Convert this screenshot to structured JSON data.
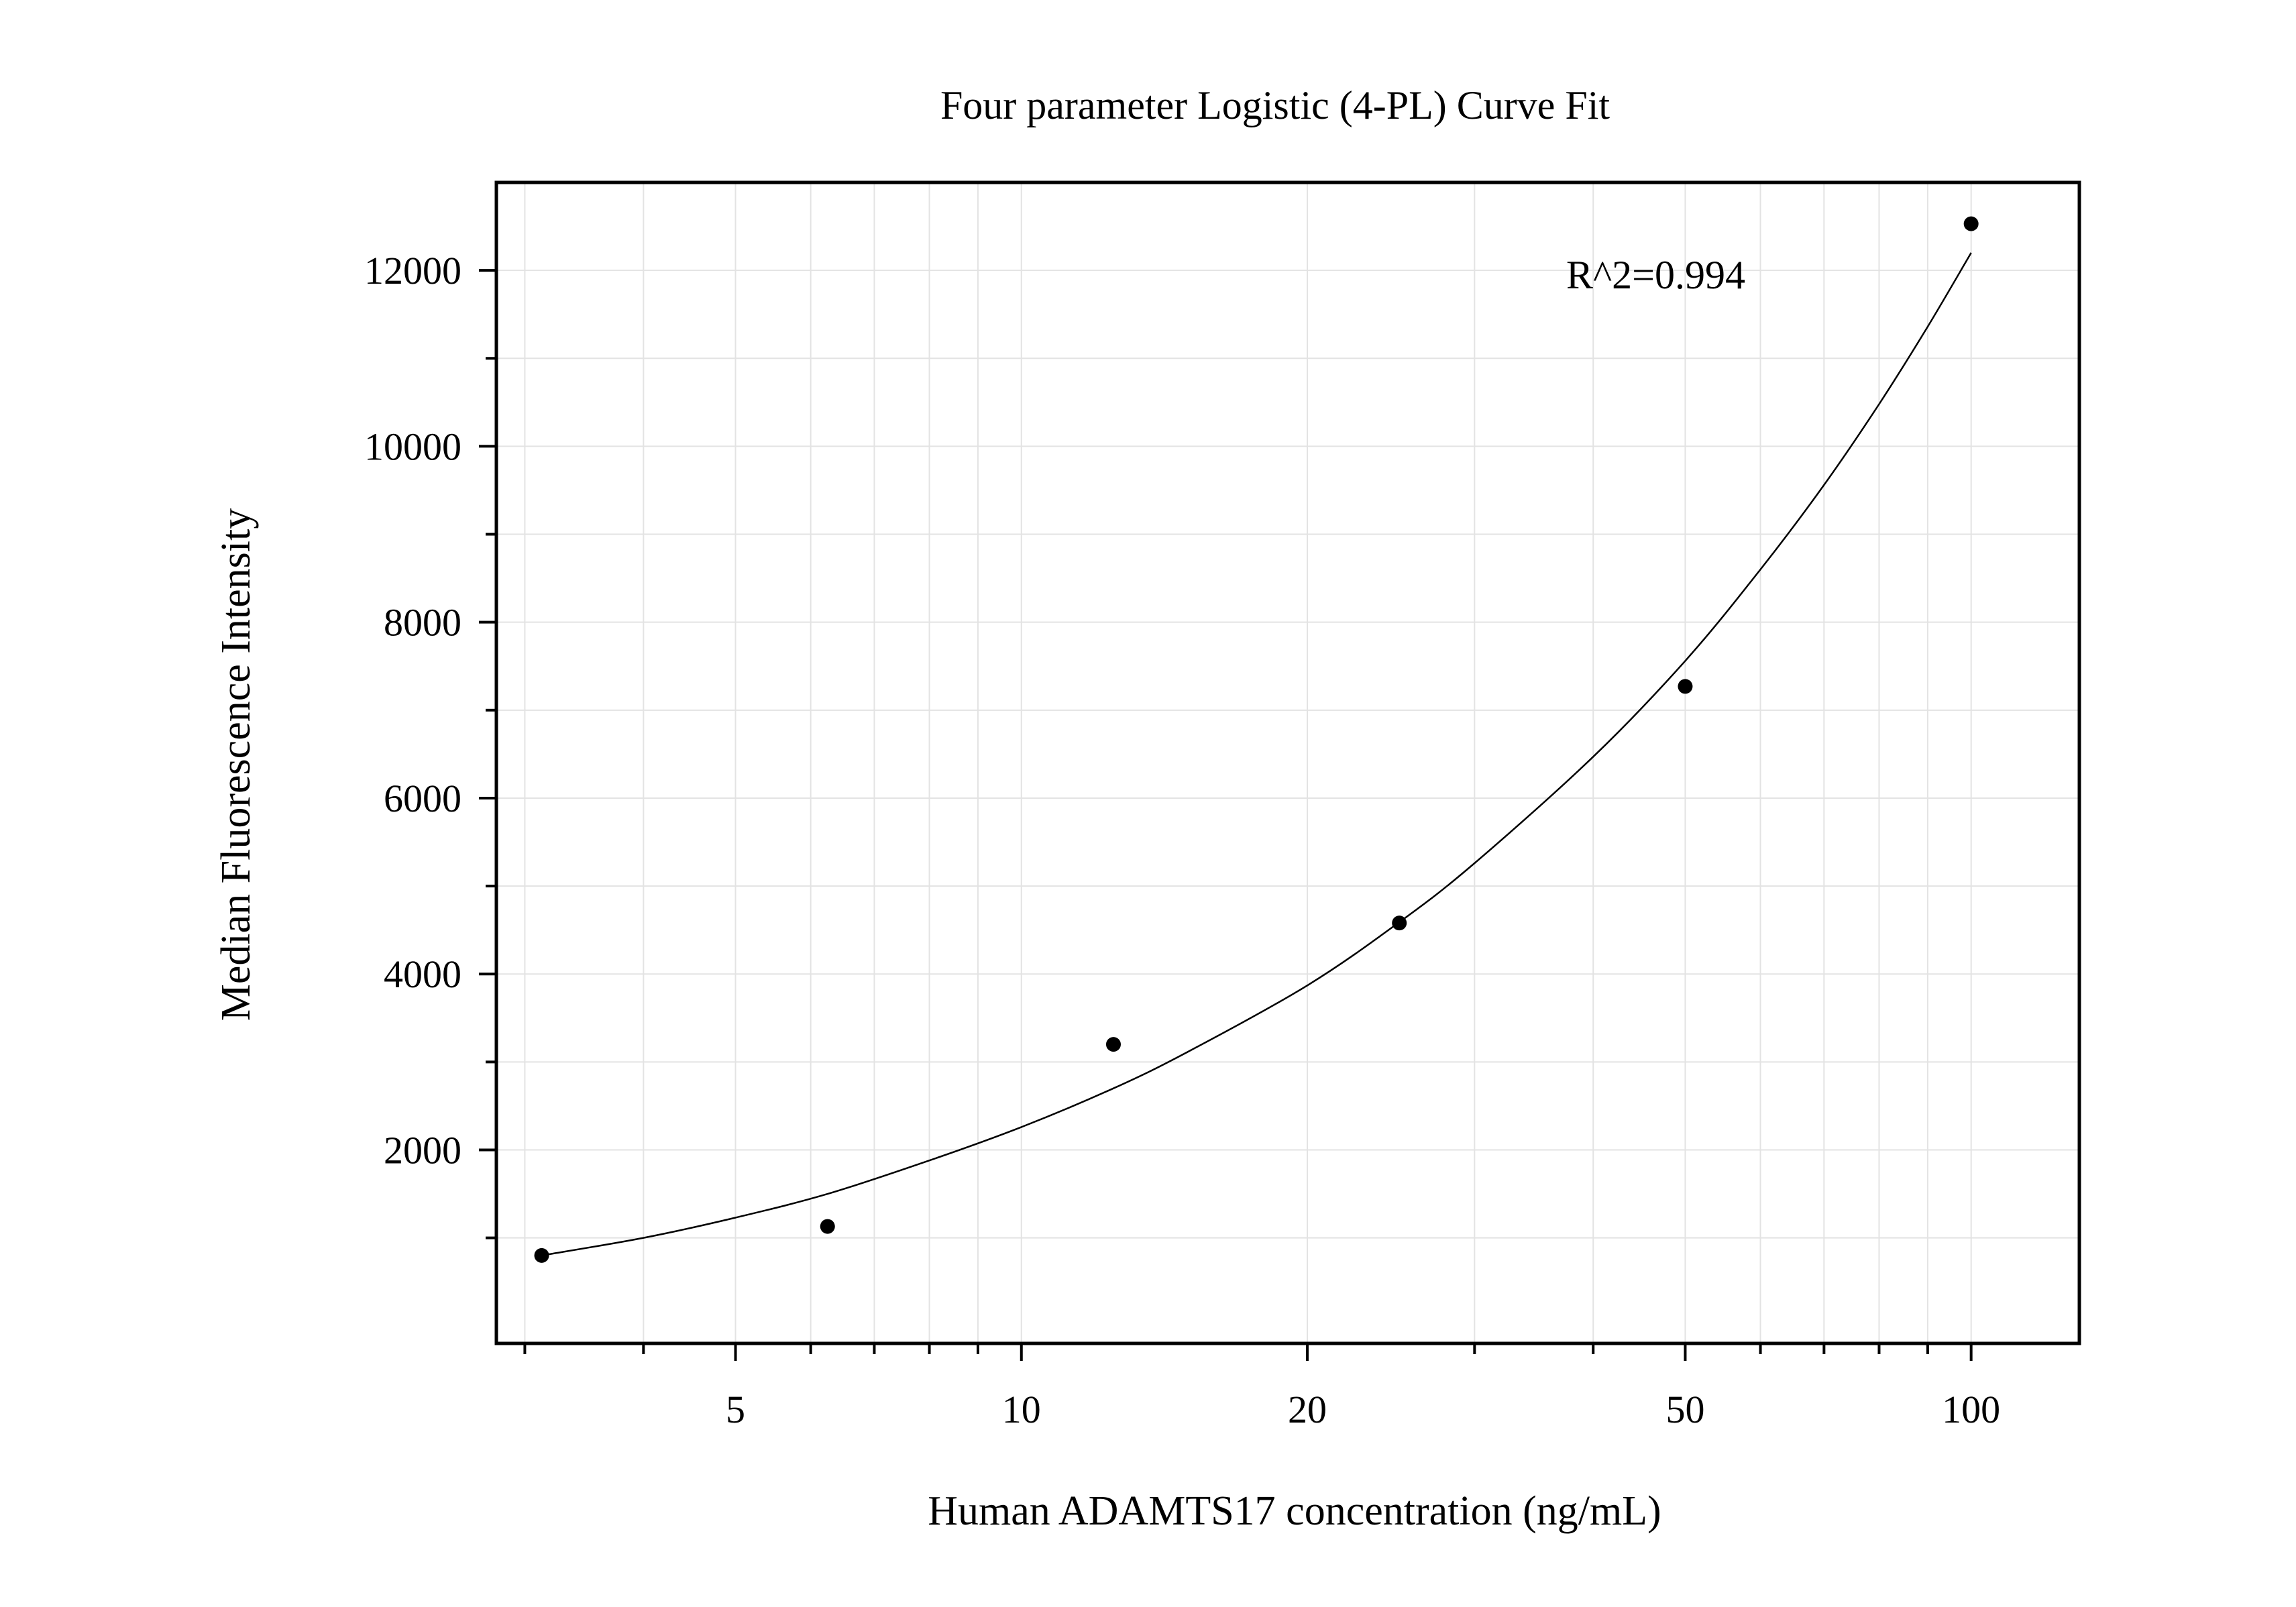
{
  "chart_data": {
    "type": "scatter",
    "title": "Four parameter Logistic (4-PL) Curve Fit",
    "xlabel": "Human ADAMTS17 concentration (ng/mL)",
    "ylabel": "Median Fluorescence Intensity",
    "x_scale": "log",
    "xlim": [
      2.8,
      130
    ],
    "ylim": [
      -200,
      13000
    ],
    "x_ticks": [
      5,
      10,
      20,
      50,
      100
    ],
    "x_tick_labels": [
      "5",
      "10",
      "20",
      "50",
      "100"
    ],
    "y_ticks": [
      2000,
      4000,
      6000,
      8000,
      10000,
      12000
    ],
    "y_tick_labels": [
      "2000",
      "4000",
      "6000",
      "8000",
      "10000",
      "12000"
    ],
    "grid": true,
    "annotation": "R^2=0.994",
    "points": {
      "x": [
        3.125,
        6.25,
        12.5,
        25,
        50,
        100
      ],
      "y": [
        800,
        1130,
        3200,
        4580,
        7270,
        12530
      ]
    },
    "fit_curve": {
      "x": [
        3.125,
        4,
        5,
        6.25,
        8,
        10,
        12.5,
        15,
        20,
        25,
        30,
        40,
        50,
        60,
        70,
        80,
        90,
        100
      ],
      "y": [
        800,
        1000,
        1230,
        1500,
        1880,
        2260,
        2700,
        3120,
        3870,
        4590,
        5260,
        6470,
        7560,
        8600,
        9560,
        10480,
        11360,
        12200
      ]
    },
    "colors": {
      "points": "#000000",
      "curve": "#000000",
      "grid": "#e3e3e3",
      "frame": "#000000"
    }
  }
}
